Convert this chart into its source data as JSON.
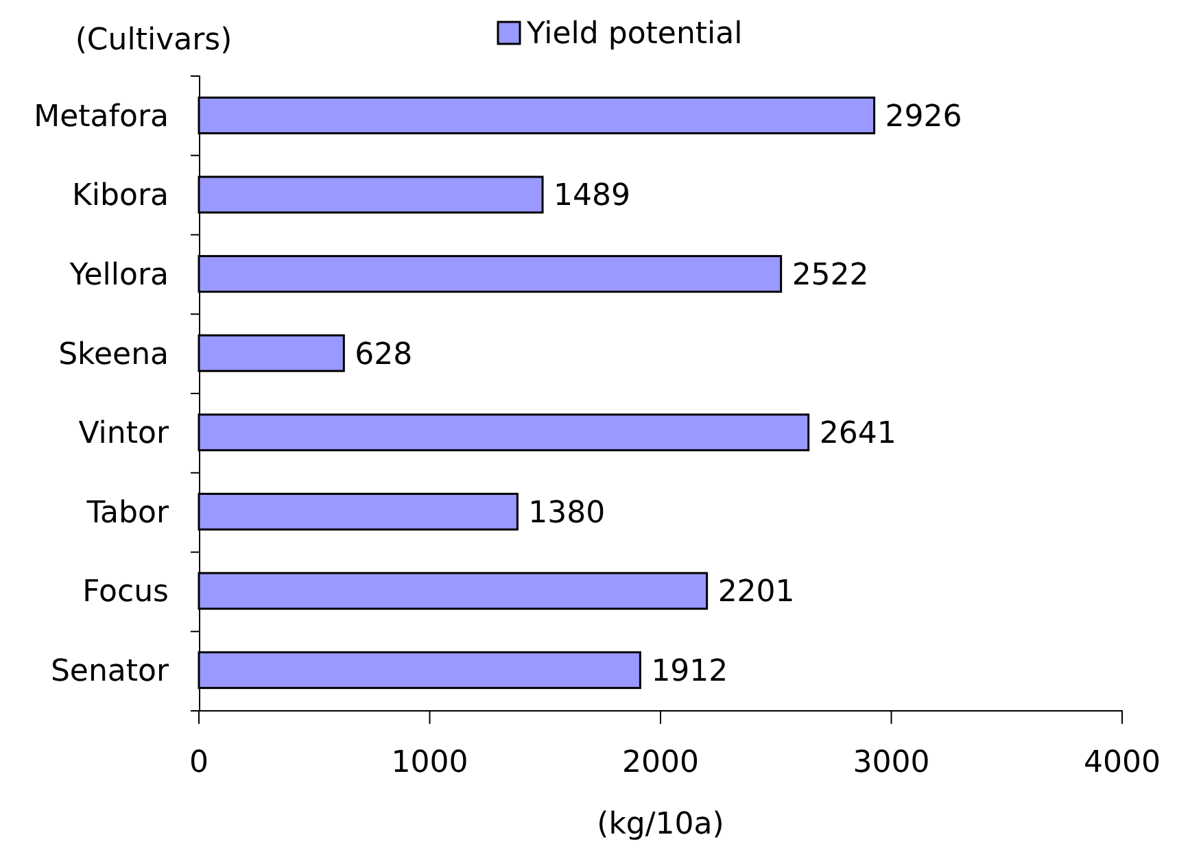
{
  "chart_data": {
    "type": "bar",
    "orientation": "horizontal",
    "ylabel": "(Cultivars)",
    "xlabel": "(kg/10a)",
    "categories": [
      "Metafora",
      "Kibora",
      "Yellora",
      "Skeena",
      "Vintor",
      "Tabor",
      "Focus",
      "Senator"
    ],
    "series": [
      {
        "name": "Yield potential",
        "color": "#9999ff",
        "values": [
          2926,
          1489,
          2522,
          628,
          2641,
          1380,
          2201,
          1912
        ]
      }
    ],
    "xlim": [
      0,
      4000
    ],
    "xticks": [
      0,
      1000,
      2000,
      3000,
      4000
    ],
    "data_labels": true,
    "legend": "top",
    "grid": false
  }
}
